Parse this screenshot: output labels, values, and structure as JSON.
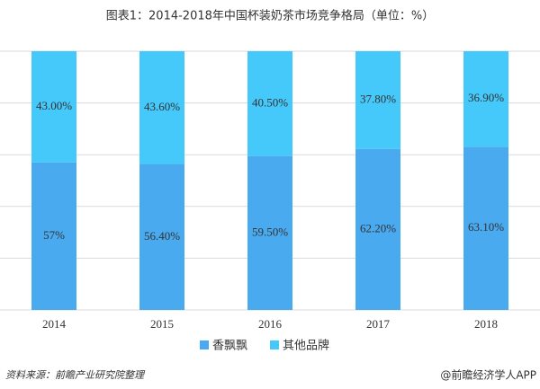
{
  "chart_data": {
    "type": "stacked_bar",
    "title": "图表1：2014-2018年中国杯装奶茶市场竞争格局（单位：%）",
    "categories": [
      "2014",
      "2015",
      "2016",
      "2017",
      "2018"
    ],
    "series": [
      {
        "name": "香飘飘",
        "color": "#4aaaf0",
        "values": [
          57,
          56.4,
          59.5,
          62.2,
          63.1
        ],
        "value_labels": [
          "57%",
          "56.40%",
          "59.50%",
          "62.20%",
          "63.10%"
        ]
      },
      {
        "name": "其他品牌",
        "color": "#45c8fa",
        "values": [
          43,
          43.6,
          40.5,
          37.8,
          36.9
        ],
        "value_labels": [
          "43.00%",
          "43.60%",
          "40.50%",
          "37.80%",
          "36.90%"
        ]
      }
    ],
    "ylim": [
      0,
      100
    ],
    "yticks": [
      0,
      20,
      40,
      60,
      80,
      100
    ],
    "grid": true,
    "source": "资料来源：前瞻产业研究院整理",
    "credit": "@前瞻经济学人APP"
  }
}
